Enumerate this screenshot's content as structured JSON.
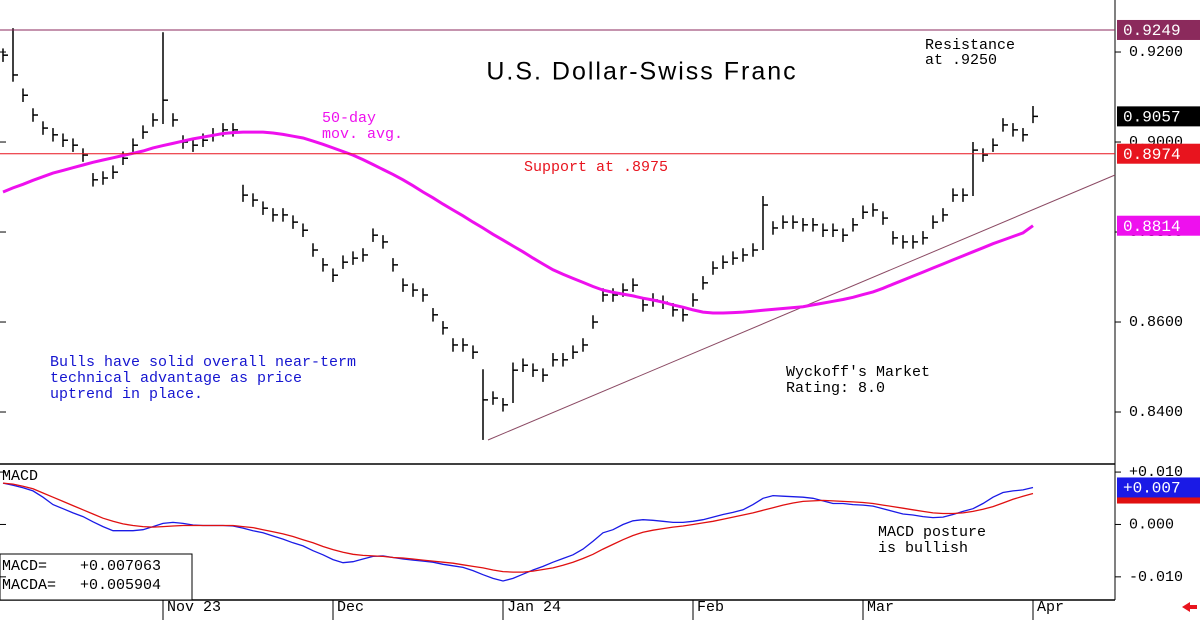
{
  "chart_data": [
    {
      "type": "ohlc",
      "title": "U.S. Dollar-Swiss Franc",
      "color": "#000000",
      "categories": [
        null,
        null,
        null,
        null,
        null,
        null,
        null,
        null,
        null,
        null,
        null,
        null,
        null,
        null,
        null,
        null,
        "Nov 23",
        null,
        null,
        null,
        null,
        null,
        null,
        null,
        null,
        null,
        null,
        null,
        null,
        null,
        null,
        null,
        null,
        "Dec",
        null,
        null,
        null,
        null,
        null,
        null,
        null,
        null,
        null,
        null,
        null,
        null,
        null,
        null,
        null,
        null,
        "Jan 24",
        null,
        null,
        null,
        null,
        null,
        null,
        null,
        null,
        null,
        null,
        null,
        null,
        null,
        null,
        null,
        null,
        null,
        null,
        "Feb",
        null,
        null,
        null,
        null,
        null,
        null,
        null,
        null,
        null,
        null,
        null,
        null,
        null,
        null,
        null,
        null,
        "Mar",
        null,
        null,
        null,
        null,
        null,
        null,
        null,
        null,
        null,
        null,
        null,
        null,
        null,
        null,
        null,
        null,
        "Apr"
      ],
      "high": [
        0.9208,
        0.9253,
        0.9119,
        0.9075,
        0.9046,
        0.9031,
        0.9019,
        0.9008,
        0.8986,
        0.8931,
        0.8935,
        0.8948,
        0.8979,
        0.9008,
        0.9037,
        0.9064,
        0.9244,
        0.9064,
        0.9015,
        0.9008,
        0.9019,
        0.9031,
        0.9042,
        0.9042,
        0.8905,
        0.8886,
        0.8868,
        0.8853,
        0.8853,
        0.8837,
        0.8819,
        0.8775,
        0.8742,
        0.8719,
        0.8748,
        0.8757,
        0.8764,
        0.8808,
        0.8793,
        0.8742,
        0.8697,
        0.8686,
        0.8675,
        0.8631,
        0.8602,
        0.8564,
        0.8564,
        0.8548,
        0.8495,
        0.8446,
        0.8431,
        0.851,
        0.8519,
        0.8508,
        0.8497,
        0.8531,
        0.8531,
        0.8548,
        0.8564,
        0.8615,
        0.8675,
        0.8675,
        0.8686,
        0.8697,
        0.8653,
        0.8664,
        0.8659,
        0.8642,
        0.8631,
        0.8664,
        0.8702,
        0.8735,
        0.8748,
        0.8757,
        0.8764,
        0.8775,
        0.888,
        0.8824,
        0.8837,
        0.8837,
        0.8831,
        0.8831,
        0.8819,
        0.8819,
        0.8808,
        0.8831,
        0.8859,
        0.8864,
        0.8846,
        0.8802,
        0.8793,
        0.8793,
        0.8802,
        0.8837,
        0.8853,
        0.8897,
        0.8897,
        0.9,
        0.8986,
        0.9008,
        0.9053,
        0.9042,
        0.9031,
        0.908
      ],
      "low": [
        0.9178,
        0.9134,
        0.9089,
        0.9045,
        0.9016,
        0.9001,
        0.8989,
        0.8978,
        0.8956,
        0.8901,
        0.8905,
        0.8918,
        0.8949,
        0.8978,
        0.9007,
        0.9034,
        0.904,
        0.9034,
        0.8985,
        0.8978,
        0.8989,
        0.9001,
        0.9012,
        0.9012,
        0.8867,
        0.8856,
        0.8838,
        0.8823,
        0.8823,
        0.8807,
        0.8789,
        0.8745,
        0.8712,
        0.8689,
        0.8718,
        0.8727,
        0.8734,
        0.8778,
        0.8763,
        0.8712,
        0.8667,
        0.8656,
        0.8645,
        0.8601,
        0.8572,
        0.8534,
        0.8534,
        0.8518,
        0.8338,
        0.8416,
        0.8401,
        0.842,
        0.8489,
        0.8478,
        0.8467,
        0.8501,
        0.8501,
        0.8518,
        0.8534,
        0.8585,
        0.8645,
        0.8645,
        0.8656,
        0.8667,
        0.8623,
        0.8634,
        0.8629,
        0.8612,
        0.8601,
        0.8634,
        0.8672,
        0.8705,
        0.8718,
        0.8727,
        0.8734,
        0.8745,
        0.876,
        0.8794,
        0.8807,
        0.8807,
        0.8801,
        0.8801,
        0.8789,
        0.8789,
        0.8778,
        0.8801,
        0.8829,
        0.8834,
        0.8816,
        0.8772,
        0.8763,
        0.8763,
        0.8772,
        0.8807,
        0.8823,
        0.8867,
        0.8867,
        0.888,
        0.8956,
        0.8978,
        0.9023,
        0.9012,
        0.9001,
        0.9042
      ],
      "close": [
        0.9193,
        0.9149,
        0.9104,
        0.906,
        0.9031,
        0.9016,
        0.9004,
        0.8993,
        0.8971,
        0.8916,
        0.892,
        0.8933,
        0.8964,
        0.8993,
        0.9022,
        0.9049,
        0.9093,
        0.9049,
        0.9,
        0.8993,
        0.9004,
        0.9016,
        0.9027,
        0.9027,
        0.8882,
        0.8871,
        0.8853,
        0.8838,
        0.8838,
        0.8822,
        0.8804,
        0.876,
        0.8727,
        0.8704,
        0.8733,
        0.8742,
        0.8749,
        0.8793,
        0.8778,
        0.8727,
        0.8682,
        0.8671,
        0.866,
        0.8616,
        0.8587,
        0.8549,
        0.8549,
        0.8533,
        0.8427,
        0.8431,
        0.8416,
        0.8493,
        0.8504,
        0.8493,
        0.8482,
        0.8516,
        0.8516,
        0.8533,
        0.8549,
        0.86,
        0.866,
        0.866,
        0.8671,
        0.8682,
        0.8638,
        0.8649,
        0.8644,
        0.8627,
        0.8616,
        0.8649,
        0.8687,
        0.872,
        0.8733,
        0.8742,
        0.8749,
        0.876,
        0.886,
        0.8809,
        0.8822,
        0.8822,
        0.8816,
        0.8816,
        0.8804,
        0.8804,
        0.8793,
        0.8816,
        0.8844,
        0.8849,
        0.8831,
        0.8787,
        0.8778,
        0.8778,
        0.8787,
        0.8822,
        0.8838,
        0.8882,
        0.8882,
        0.8982,
        0.8971,
        0.8993,
        0.9038,
        0.9027,
        0.9016,
        0.9057
      ],
      "moving_average": {
        "lines": [
          "50-day",
          "mov. avg."
        ],
        "color": "#ee10ee",
        "values": [
          0.8889,
          0.8898,
          0.8906,
          0.8915,
          0.8923,
          0.8931,
          0.8937,
          0.8943,
          0.8949,
          0.8955,
          0.896,
          0.8965,
          0.897,
          0.8975,
          0.898,
          0.8987,
          0.8992,
          0.8997,
          0.9002,
          0.9007,
          0.9011,
          0.9015,
          0.9019,
          0.9021,
          0.9022,
          0.9022,
          0.9022,
          0.902,
          0.9017,
          0.9013,
          0.9009,
          0.9002,
          0.8995,
          0.8987,
          0.8979,
          0.8971,
          0.8961,
          0.895,
          0.8939,
          0.8928,
          0.8916,
          0.8903,
          0.8889,
          0.8876,
          0.8862,
          0.8849,
          0.8836,
          0.8822,
          0.8809,
          0.8795,
          0.8782,
          0.8769,
          0.8756,
          0.8742,
          0.8729,
          0.8716,
          0.8706,
          0.8697,
          0.8688,
          0.8679,
          0.8671,
          0.8666,
          0.8662,
          0.8658,
          0.8653,
          0.8649,
          0.8644,
          0.8638,
          0.8633,
          0.8627,
          0.8622,
          0.862,
          0.862,
          0.8621,
          0.8622,
          0.8624,
          0.8626,
          0.8628,
          0.863,
          0.8632,
          0.8634,
          0.8638,
          0.8642,
          0.8646,
          0.865,
          0.8655,
          0.8661,
          0.8667,
          0.8675,
          0.8684,
          0.8693,
          0.8702,
          0.8711,
          0.872,
          0.8729,
          0.8738,
          0.8747,
          0.8756,
          0.8765,
          0.8774,
          0.8782,
          0.879,
          0.8798,
          0.8814
        ]
      },
      "ylim": [
        0.82867,
        0.93156
      ],
      "yticks": [
        {
          "value": 0.84,
          "label": "0.8400"
        },
        {
          "value": 0.86,
          "label": "0.8600"
        },
        {
          "value": 0.88,
          "label": "0.8800"
        },
        {
          "value": 0.9,
          "label": "0.9000"
        },
        {
          "value": 0.92,
          "label": "0.9200"
        }
      ],
      "flags": [
        {
          "value": 0.9249,
          "label": "0.9249",
          "color": "#8b2a5c",
          "line": true
        },
        {
          "value": 0.9057,
          "label": "0.9057",
          "color": "#000000",
          "line": false
        },
        {
          "value": 0.8974,
          "label": "0.8974",
          "color": "#e8141e",
          "line": true
        },
        {
          "value": 0.8814,
          "label": "0.8814",
          "color": "#ee10ee",
          "line": false
        }
      ],
      "annotations": {
        "resistance": [
          "Resistance",
          "at .9250"
        ],
        "support": "Support at .8975",
        "bulls": [
          "Bulls have solid overall near-term",
          "technical advantage as price",
          "uptrend in place."
        ],
        "rating": [
          "Wyckoff's Market",
          "Rating: 8.0"
        ]
      }
    },
    {
      "type": "line",
      "title": "MACD",
      "series": [
        {
          "name": "MACD=",
          "color": "#1a1ae6",
          "readout": "+0.007063",
          "values": [
            0.0079,
            0.0075,
            0.007,
            0.0064,
            0.0052,
            0.0038,
            0.003,
            0.0022,
            0.0015,
            0.0005,
            -0.0004,
            -0.0012,
            -0.0012,
            -0.0012,
            -0.001,
            -0.0004,
            0.0002,
            0.0004,
            0.0002,
            -0.0001,
            -0.0002,
            -0.0002,
            -0.0002,
            -0.0003,
            -0.0007,
            -0.0012,
            -0.0016,
            -0.0022,
            -0.0028,
            -0.0035,
            -0.0041,
            -0.005,
            -0.0058,
            -0.0067,
            -0.0073,
            -0.0071,
            -0.0066,
            -0.0061,
            -0.006,
            -0.0063,
            -0.0066,
            -0.0068,
            -0.007,
            -0.0072,
            -0.0076,
            -0.0079,
            -0.0082,
            -0.0088,
            -0.0096,
            -0.0103,
            -0.0108,
            -0.0103,
            -0.0095,
            -0.0087,
            -0.008,
            -0.0072,
            -0.0065,
            -0.0058,
            -0.0047,
            -0.0032,
            -0.0016,
            -0.001,
            0.0,
            0.0007,
            0.0009,
            0.0008,
            0.0006,
            0.0004,
            0.0004,
            0.0006,
            0.0009,
            0.0014,
            0.0019,
            0.0023,
            0.0028,
            0.0038,
            0.005,
            0.0055,
            0.0054,
            0.0053,
            0.0052,
            0.005,
            0.0045,
            0.004,
            0.004,
            0.0038,
            0.0037,
            0.0035,
            0.003,
            0.0025,
            0.002,
            0.0018,
            0.0015,
            0.0013,
            0.0014,
            0.0019,
            0.0025,
            0.003,
            0.004,
            0.0052,
            0.0061,
            0.0064,
            0.0066,
            0.007063
          ]
        },
        {
          "name": "MACDA=",
          "color": "#e01010",
          "readout": "+0.005904",
          "values": [
            0.0079,
            0.0077,
            0.0073,
            0.0068,
            0.006,
            0.0052,
            0.0044,
            0.0036,
            0.0028,
            0.002,
            0.0012,
            0.0006,
            0.0001,
            -0.0002,
            -0.0004,
            -0.0005,
            -0.0004,
            -0.0003,
            -0.0002,
            -0.0002,
            -0.0002,
            -0.0002,
            -0.0002,
            -0.0002,
            -0.0004,
            -0.0006,
            -0.001,
            -0.0014,
            -0.0018,
            -0.0023,
            -0.0029,
            -0.0035,
            -0.0042,
            -0.0048,
            -0.0053,
            -0.0057,
            -0.0059,
            -0.006,
            -0.0061,
            -0.0063,
            -0.0064,
            -0.0066,
            -0.0068,
            -0.007,
            -0.0072,
            -0.0074,
            -0.0077,
            -0.008,
            -0.0083,
            -0.0087,
            -0.009,
            -0.0091,
            -0.0091,
            -0.0089,
            -0.0086,
            -0.0083,
            -0.0078,
            -0.0072,
            -0.0065,
            -0.0057,
            -0.0047,
            -0.0038,
            -0.0029,
            -0.0021,
            -0.0015,
            -0.0011,
            -0.0008,
            -0.0005,
            -0.0003,
            0.0,
            0.0003,
            0.0006,
            0.001,
            0.0014,
            0.0018,
            0.0022,
            0.0027,
            0.0032,
            0.0037,
            0.0041,
            0.0044,
            0.0045,
            0.0046,
            0.0045,
            0.0044,
            0.0043,
            0.0042,
            0.004,
            0.0037,
            0.0034,
            0.0031,
            0.0028,
            0.0025,
            0.0022,
            0.0021,
            0.0021,
            0.0022,
            0.0025,
            0.0029,
            0.0034,
            0.0041,
            0.0048,
            0.0054,
            0.005904
          ]
        }
      ],
      "ylim": [
        -0.01442,
        0.01135
      ],
      "yticks": [
        {
          "value": -0.01,
          "label": "-0.010"
        },
        {
          "value": 0,
          "label": "0.000"
        },
        {
          "value": 0.01,
          "label": "+0.010"
        }
      ],
      "flags": [
        {
          "value": 0.005904,
          "color": "#e01010"
        },
        {
          "value": 0.007063,
          "label": "+0.007",
          "color": "#1a1ae6"
        }
      ],
      "annotations": {
        "posture": [
          "MACD posture",
          "is bullish"
        ]
      }
    }
  ]
}
